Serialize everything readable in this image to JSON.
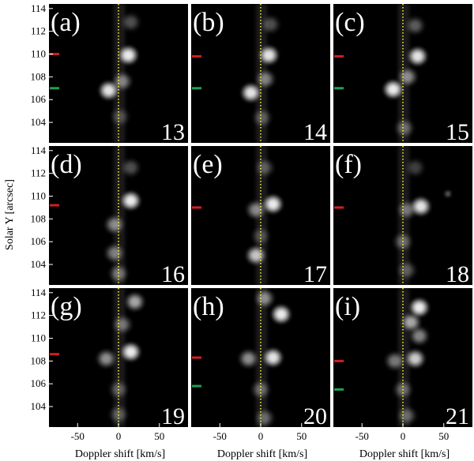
{
  "chart_data": {
    "type": "heatmap",
    "description_units": {
      "x": "km/s",
      "y": "arcsec"
    },
    "xlabel": "Doppler shift [km/s]",
    "ylabel": "Solar Y [arcsec]",
    "xlim": [
      -85,
      85
    ],
    "ylim": [
      102.2,
      114.4
    ],
    "x_ticks": [
      -50,
      0,
      50
    ],
    "x_tick_labels": [
      "-50",
      "0",
      "50"
    ],
    "y_ticks": [
      104,
      106,
      108,
      110,
      112,
      114
    ],
    "y_tick_labels": [
      "104",
      "106",
      "108",
      "110",
      "112",
      "114"
    ],
    "reference_line": {
      "x": 0,
      "style": "dotted",
      "color": "#ffff33"
    },
    "colors": {
      "background": "#000000",
      "emission": "#ffffff",
      "red_marker": "#d02020",
      "green_marker": "#20a050",
      "divider": "#ffffff"
    },
    "panels": [
      {
        "label": "(a)",
        "index": "13",
        "markers": {
          "red": 110.0,
          "green": 107.0
        },
        "blobs": [
          {
            "v": 12,
            "y": 109.9,
            "a": 1.0
          },
          {
            "v": -12,
            "y": 106.8,
            "a": 0.95
          },
          {
            "v": 5,
            "y": 107.6,
            "a": 0.4
          },
          {
            "v": 15,
            "y": 112.8,
            "a": 0.25
          },
          {
            "v": 2,
            "y": 104.5,
            "a": 0.2
          }
        ]
      },
      {
        "label": "(b)",
        "index": "14",
        "markers": {
          "red": 109.8,
          "green": 107.0
        },
        "blobs": [
          {
            "v": 10,
            "y": 109.9,
            "a": 0.95
          },
          {
            "v": -12,
            "y": 106.6,
            "a": 0.95
          },
          {
            "v": 6,
            "y": 107.8,
            "a": 0.4
          },
          {
            "v": 12,
            "y": 112.6,
            "a": 0.25
          },
          {
            "v": 2,
            "y": 104.4,
            "a": 0.25
          }
        ]
      },
      {
        "label": "(c)",
        "index": "15",
        "markers": {
          "red": 109.8,
          "green": 107.0
        },
        "blobs": [
          {
            "v": 18,
            "y": 109.8,
            "a": 0.95
          },
          {
            "v": -12,
            "y": 106.9,
            "a": 1.0
          },
          {
            "v": 6,
            "y": 108.0,
            "a": 0.45
          },
          {
            "v": 15,
            "y": 112.5,
            "a": 0.3
          },
          {
            "v": 2,
            "y": 103.5,
            "a": 0.3
          }
        ]
      },
      {
        "label": "(d)",
        "index": "16",
        "markers": {
          "red": 109.2
        },
        "blobs": [
          {
            "v": 15,
            "y": 109.6,
            "a": 1.0
          },
          {
            "v": -5,
            "y": 107.5,
            "a": 0.45
          },
          {
            "v": -5,
            "y": 105.0,
            "a": 0.4
          },
          {
            "v": 0,
            "y": 103.2,
            "a": 0.35
          },
          {
            "v": 15,
            "y": 112.5,
            "a": 0.25
          }
        ]
      },
      {
        "label": "(e)",
        "index": "17",
        "markers": {
          "red": 109.0
        },
        "blobs": [
          {
            "v": 15,
            "y": 109.3,
            "a": 1.0
          },
          {
            "v": -6,
            "y": 104.8,
            "a": 0.75
          },
          {
            "v": -6,
            "y": 108.8,
            "a": 0.45
          },
          {
            "v": 5,
            "y": 112.5,
            "a": 0.25
          },
          {
            "v": 0,
            "y": 106.5,
            "a": 0.2
          }
        ]
      },
      {
        "label": "(f)",
        "index": "18",
        "markers": {
          "red": 109.0
        },
        "blobs": [
          {
            "v": 22,
            "y": 109.1,
            "a": 0.95
          },
          {
            "v": 5,
            "y": 108.8,
            "a": 0.35
          },
          {
            "v": 0,
            "y": 106.0,
            "a": 0.3
          },
          {
            "v": 5,
            "y": 103.5,
            "a": 0.25
          },
          {
            "v": 15,
            "y": 112.5,
            "a": 0.2
          },
          {
            "v": 55,
            "y": 110.2,
            "a": 0.45,
            "s": 0.35
          }
        ]
      },
      {
        "label": "(g)",
        "index": "19",
        "markers": {
          "red": 108.6
        },
        "blobs": [
          {
            "v": 15,
            "y": 108.8,
            "a": 1.0
          },
          {
            "v": -15,
            "y": 108.2,
            "a": 0.5
          },
          {
            "v": 20,
            "y": 113.2,
            "a": 0.6
          },
          {
            "v": 5,
            "y": 111.2,
            "a": 0.35
          },
          {
            "v": 0,
            "y": 105.5,
            "a": 0.25
          },
          {
            "v": 0,
            "y": 103.3,
            "a": 0.25
          }
        ]
      },
      {
        "label": "(h)",
        "index": "20",
        "markers": {
          "red": 108.3,
          "green": 105.8
        },
        "blobs": [
          {
            "v": 25,
            "y": 112.1,
            "a": 1.0
          },
          {
            "v": 15,
            "y": 108.3,
            "a": 0.95
          },
          {
            "v": -15,
            "y": 108.2,
            "a": 0.5
          },
          {
            "v": 5,
            "y": 113.5,
            "a": 0.45
          },
          {
            "v": 0,
            "y": 105.5,
            "a": 0.3
          },
          {
            "v": 5,
            "y": 103.0,
            "a": 0.3
          }
        ]
      },
      {
        "label": "(i)",
        "index": "21",
        "markers": {
          "red": 108.0,
          "green": 105.5
        },
        "blobs": [
          {
            "v": 20,
            "y": 112.7,
            "a": 1.0
          },
          {
            "v": 10,
            "y": 111.4,
            "a": 0.6
          },
          {
            "v": 20,
            "y": 110.2,
            "a": 0.45
          },
          {
            "v": 15,
            "y": 108.2,
            "a": 0.8
          },
          {
            "v": -10,
            "y": 108.0,
            "a": 0.4
          },
          {
            "v": 0,
            "y": 105.5,
            "a": 0.3
          },
          {
            "v": 5,
            "y": 103.2,
            "a": 0.3
          }
        ]
      }
    ]
  }
}
